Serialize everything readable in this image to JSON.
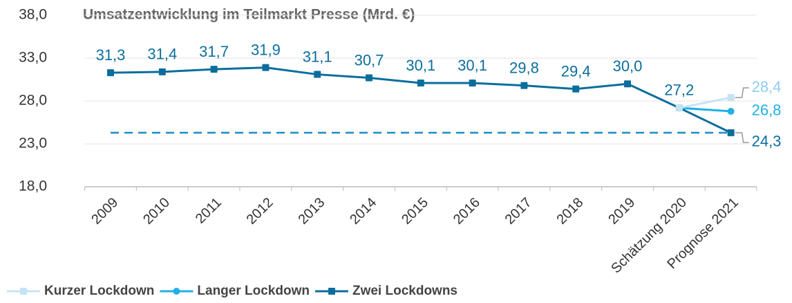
{
  "chart_data": {
    "type": "line",
    "title": "Umsatzentwicklung im Teilmarkt Presse (Mrd. €)",
    "categories": [
      "2009",
      "2010",
      "2011",
      "2012",
      "2013",
      "2014",
      "2015",
      "2016",
      "2017",
      "2018",
      "2019",
      "Schätzung 2020",
      "Prognose 2021"
    ],
    "series": [
      {
        "name": "Kurzer Lockdown",
        "color": "#c5e3f6",
        "values": [
          null,
          null,
          null,
          null,
          null,
          null,
          null,
          null,
          null,
          null,
          null,
          27.2,
          28.4
        ],
        "value_labels": [
          null,
          null,
          null,
          null,
          null,
          null,
          null,
          null,
          null,
          null,
          null,
          null,
          "28,4"
        ]
      },
      {
        "name": "Langer Lockdown",
        "color": "#1fb0e6",
        "values": [
          null,
          null,
          null,
          null,
          null,
          null,
          null,
          null,
          null,
          null,
          null,
          27.2,
          26.8
        ],
        "value_labels": [
          null,
          null,
          null,
          null,
          null,
          null,
          null,
          null,
          null,
          null,
          null,
          null,
          "26,8"
        ]
      },
      {
        "name": "Zwei Lockdowns",
        "color": "#0a6e9c",
        "values": [
          31.3,
          31.4,
          31.7,
          31.9,
          31.1,
          30.7,
          30.1,
          30.1,
          29.8,
          29.4,
          30.0,
          27.2,
          24.3
        ],
        "value_labels": [
          "31,3",
          "31,4",
          "31,7",
          "31,9",
          "31,1",
          "30,7",
          "30,1",
          "30,1",
          "29,8",
          "29,4",
          "30,0",
          "27,2",
          "24,3"
        ]
      }
    ],
    "ylim": [
      18,
      38
    ],
    "yticks": [
      {
        "value": 18,
        "label": "18,0"
      },
      {
        "value": 23,
        "label": "23,0"
      },
      {
        "value": 28,
        "label": "28,0"
      },
      {
        "value": 33,
        "label": "33,0"
      },
      {
        "value": 38,
        "label": "38,0"
      }
    ],
    "grid": true,
    "legend": "bottom-left"
  }
}
